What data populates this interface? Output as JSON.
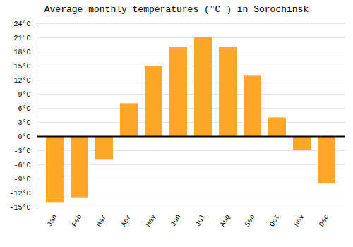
{
  "chart_data": {
    "type": "bar",
    "title": "Average monthly temperatures (°C ) in Sorochinsk",
    "categories": [
      "Jan",
      "Feb",
      "Mar",
      "Apr",
      "May",
      "Jun",
      "Jul",
      "Aug",
      "Sep",
      "Oct",
      "Nov",
      "Dec"
    ],
    "values": [
      -14,
      -13,
      -5,
      7,
      15,
      19,
      21,
      19,
      13,
      4,
      -3,
      -10
    ],
    "color": "#FFA726",
    "ylim": [
      -15,
      24
    ],
    "yticks": [
      {
        "value": -15,
        "label": "-15°C"
      },
      {
        "value": -12,
        "label": "-12°C"
      },
      {
        "value": -9,
        "label": "-9°C"
      },
      {
        "value": -6,
        "label": "-6°C"
      },
      {
        "value": -3,
        "label": "-3°C"
      },
      {
        "value": 0,
        "label": "0°C"
      },
      {
        "value": 3,
        "label": "3°C"
      },
      {
        "value": 6,
        "label": "6°C"
      },
      {
        "value": 9,
        "label": "9°C"
      },
      {
        "value": 12,
        "label": "12°C"
      },
      {
        "value": 15,
        "label": "15°C"
      },
      {
        "value": 18,
        "label": "18°C"
      },
      {
        "value": 21,
        "label": "21°C"
      },
      {
        "value": 24,
        "label": "24°C"
      }
    ],
    "grid": true
  }
}
